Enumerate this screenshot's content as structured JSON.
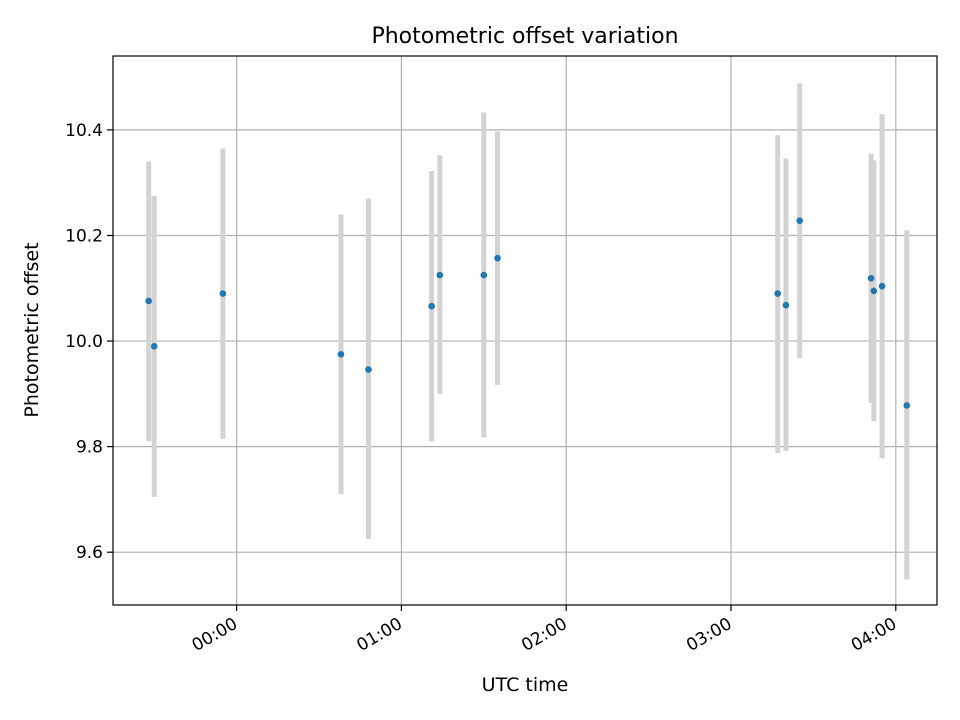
{
  "chart_data": {
    "type": "scatter",
    "title": "Photometric offset variation",
    "xlabel": "UTC time",
    "ylabel": "Photometric offset",
    "x_unit": "hh:mm",
    "xlim": [
      "-00:45",
      "04:15"
    ],
    "ylim": [
      9.5,
      10.54
    ],
    "x_ticks": [
      "00:00",
      "01:00",
      "02:00",
      "03:00",
      "04:00"
    ],
    "y_ticks": [
      "9.6",
      "9.8",
      "10.0",
      "10.2",
      "10.4"
    ],
    "grid": true,
    "legend": "none",
    "points": [
      {
        "x": "-00:32",
        "y": 10.076,
        "lo": 9.81,
        "hi": 10.34
      },
      {
        "x": "-00:30",
        "y": 9.99,
        "lo": 9.705,
        "hi": 10.275
      },
      {
        "x": "-00:05",
        "y": 10.09,
        "lo": 9.815,
        "hi": 10.365
      },
      {
        "x": "00:38",
        "y": 9.975,
        "lo": 9.71,
        "hi": 10.24
      },
      {
        "x": "00:48",
        "y": 9.946,
        "lo": 9.625,
        "hi": 10.27
      },
      {
        "x": "01:11",
        "y": 10.066,
        "lo": 9.81,
        "hi": 10.322
      },
      {
        "x": "01:14",
        "y": 10.125,
        "lo": 9.9,
        "hi": 10.352
      },
      {
        "x": "01:30",
        "y": 10.125,
        "lo": 9.817,
        "hi": 10.433
      },
      {
        "x": "01:35",
        "y": 10.157,
        "lo": 9.917,
        "hi": 10.397
      },
      {
        "x": "03:17",
        "y": 10.09,
        "lo": 9.788,
        "hi": 10.39
      },
      {
        "x": "03:20",
        "y": 10.068,
        "lo": 9.792,
        "hi": 10.346
      },
      {
        "x": "03:25",
        "y": 10.228,
        "lo": 9.968,
        "hi": 10.488
      },
      {
        "x": "03:51",
        "y": 10.119,
        "lo": 9.883,
        "hi": 10.355
      },
      {
        "x": "03:52",
        "y": 10.095,
        "lo": 9.848,
        "hi": 10.342
      },
      {
        "x": "03:55",
        "y": 10.104,
        "lo": 9.778,
        "hi": 10.43
      },
      {
        "x": "04:04",
        "y": 9.878,
        "lo": 9.548,
        "hi": 10.21
      }
    ],
    "colors": {
      "point": "#1f77b4",
      "errorbar": "#d3d3d3",
      "grid": "#b0b0b0",
      "axes": "#000000"
    }
  }
}
